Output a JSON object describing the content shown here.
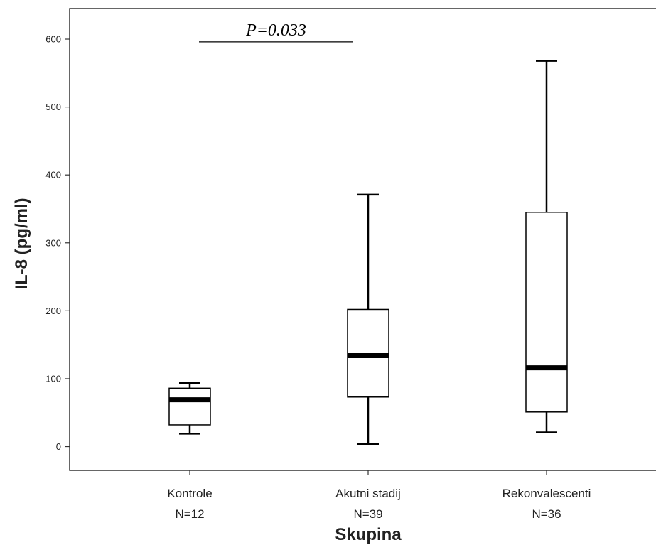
{
  "chart_data": {
    "type": "boxplot",
    "xlabel": "Skupina",
    "ylabel": "IL-8 (pg/ml)",
    "ylim": [
      -35,
      645
    ],
    "yticks": [
      0,
      100,
      200,
      300,
      400,
      500,
      600
    ],
    "ytick_labels": [
      "0",
      "100",
      "200",
      "300",
      "400",
      "500",
      "600"
    ],
    "grid": false,
    "categories": [
      {
        "label": "Kontrole",
        "n_label": "N=12",
        "whisker_low": 19,
        "q1": 32,
        "median": 69,
        "q3": 86,
        "whisker_high": 94
      },
      {
        "label": "Akutni stadij",
        "n_label": "N=39",
        "whisker_low": 4,
        "q1": 73,
        "median": 134,
        "q3": 202,
        "whisker_high": 371
      },
      {
        "label": "Rekonvalescenti",
        "n_label": "N=36",
        "whisker_low": 21,
        "q1": 51,
        "median": 116,
        "q3": 345,
        "whisker_high": 568
      }
    ],
    "annotations": [
      {
        "text": "P=0.033",
        "from_category": 0,
        "to_category": 1,
        "y": 596
      }
    ]
  }
}
